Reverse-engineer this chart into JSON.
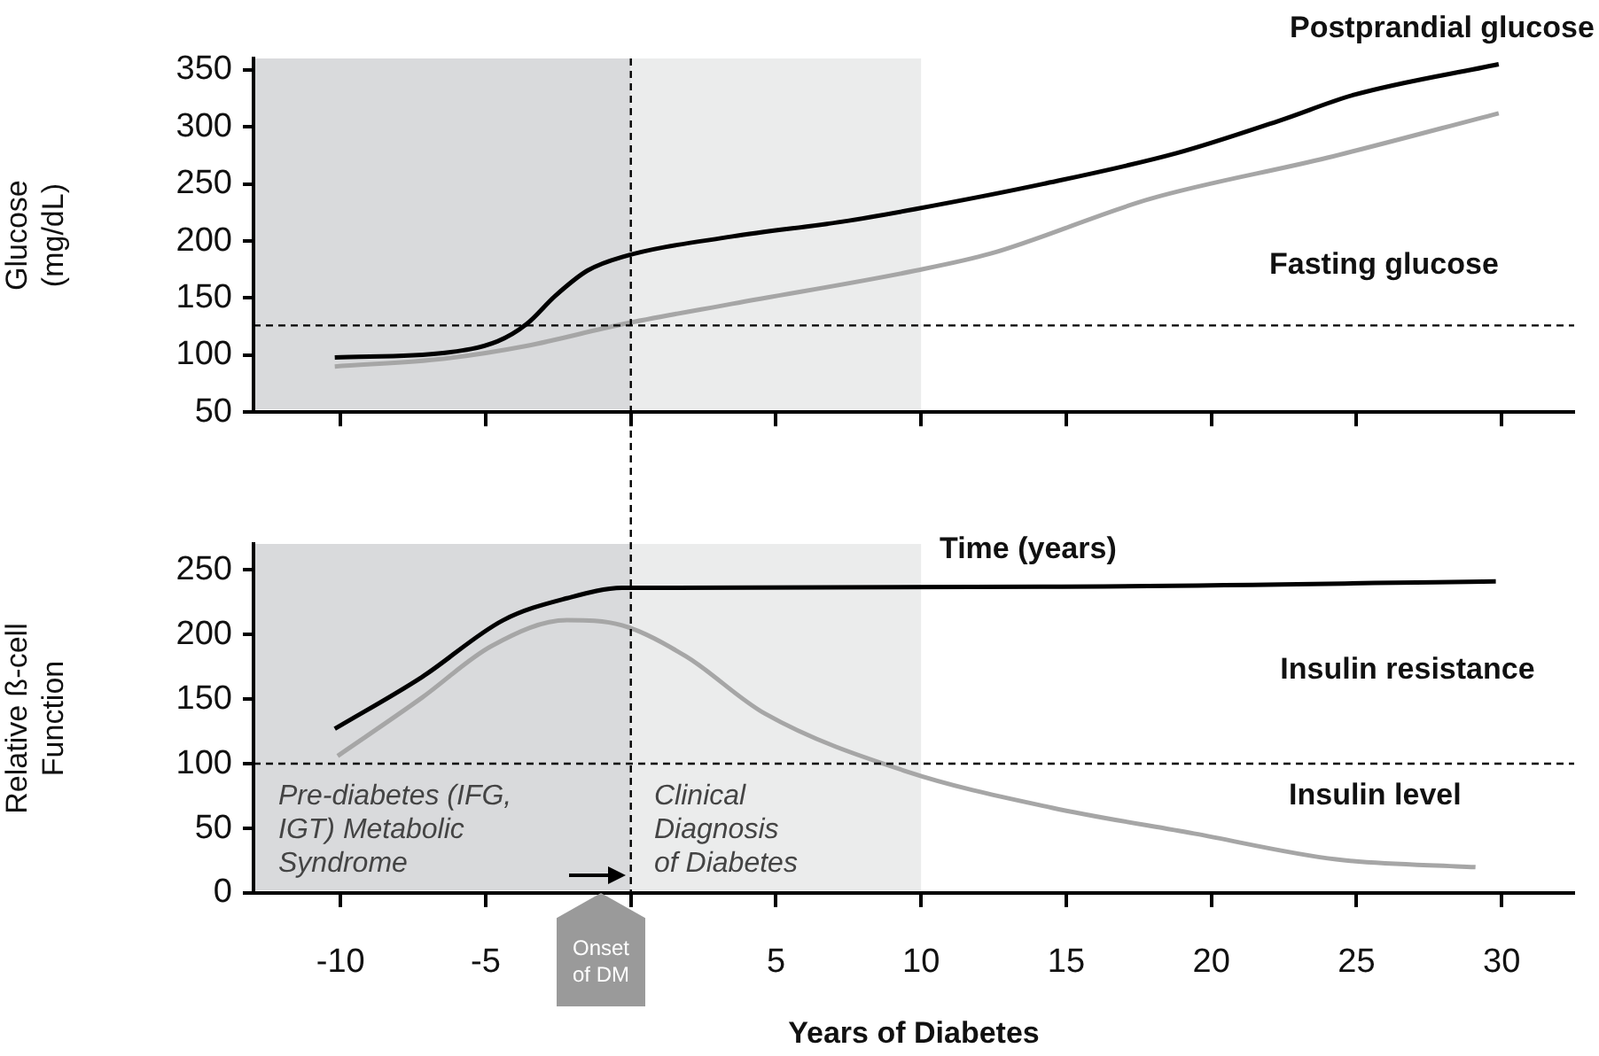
{
  "chart_data": [
    {
      "type": "line",
      "ylabel": "Glucose (mg/dL)",
      "xlim": [
        -13,
        32.5
      ],
      "xticks": [
        -10,
        -5,
        {
          "value": 0,
          "label": null
        },
        5,
        10,
        15,
        20,
        25,
        30
      ],
      "ylim": [
        50,
        360
      ],
      "yticks": [
        50,
        100,
        150,
        200,
        250,
        300,
        350
      ],
      "tick_labels": "y",
      "grid": false,
      "legend": false,
      "marker": "none",
      "series": [
        {
          "name": "Postprandial glucose",
          "color": "#000000",
          "x": [
            -10.2,
            -6.4,
            -4.6,
            -3.6,
            -2.6,
            -1.5,
            -0.3,
            3.5,
            7.3,
            9.8,
            14.2,
            18.8,
            22.4,
            24.9,
            29.9
          ],
          "values": [
            98,
            102,
            112,
            127,
            152,
            174,
            186,
            204,
            217,
            228,
            250,
            277,
            306,
            328,
            355
          ]
        },
        {
          "name": "Fasting glucose",
          "color": "#a6a6a6",
          "x": [
            -10.2,
            -6.4,
            -3.6,
            -0.3,
            3.5,
            9.8,
            12.4,
            17.9,
            24,
            29.9
          ],
          "values": [
            90,
            97,
            108,
            127,
            145,
            174,
            189,
            237,
            273,
            312
          ]
        }
      ],
      "bands": [
        {
          "axis": "x",
          "from": -13,
          "to": 0,
          "color": "#d9dadc"
        },
        {
          "axis": "x",
          "from": 0,
          "to": 10,
          "color": "#ebecec"
        }
      ],
      "ref_lines": [
        {
          "axis": "x",
          "value": 0,
          "line_style": "dashed",
          "color": "#000000"
        },
        {
          "axis": "y",
          "value": 126,
          "line_style": "dashed",
          "color": "#000000"
        }
      ]
    },
    {
      "type": "line",
      "ylabel": "Relative ß-cell Function",
      "xlabel": "Years of Diabetes",
      "xlim": [
        -13,
        32.5
      ],
      "xticks": [
        -10,
        -5,
        {
          "value": 0,
          "label": null
        },
        5,
        10,
        15,
        20,
        25,
        30
      ],
      "ylim": [
        0,
        270
      ],
      "yticks": [
        0,
        50,
        100,
        150,
        200,
        250
      ],
      "grid": false,
      "legend": false,
      "marker": "none",
      "series": [
        {
          "name": "Insulin resistance",
          "color": "#000000",
          "x": [
            -10.2,
            -7.2,
            -4.4,
            -2.2,
            -0.3,
            14.2,
            29.8
          ],
          "values": [
            127,
            167,
            211,
            228,
            236,
            237,
            241
          ]
        },
        {
          "name": "Insulin level",
          "color": "#a6a6a6",
          "x": [
            -10.1,
            -7.2,
            -4.8,
            -2.2,
            -0.3,
            1.9,
            4.6,
            9.5,
            14.5,
            19.4,
            24.3,
            29.1
          ],
          "values": [
            106,
            151,
            191,
            211,
            207,
            183,
            139,
            94,
            66,
            46,
            26,
            20
          ]
        }
      ],
      "bands": [
        {
          "axis": "x",
          "from": -13,
          "to": 0,
          "color": "#d9dadc"
        },
        {
          "axis": "x",
          "from": 0,
          "to": 10,
          "color": "#ebecec"
        }
      ],
      "ref_lines": [
        {
          "axis": "x",
          "value": 0,
          "line_style": "dashed",
          "color": "#000000"
        },
        {
          "axis": "y",
          "value": 100,
          "line_style": "dashed",
          "color": "#000000"
        }
      ],
      "annotations": [
        "Time (years)",
        "Pre-diabetes (IFG, IGT) Metabolic Syndrome",
        "Clinical Diagnosis of Diabetes",
        "Onset of DM"
      ]
    }
  ]
}
